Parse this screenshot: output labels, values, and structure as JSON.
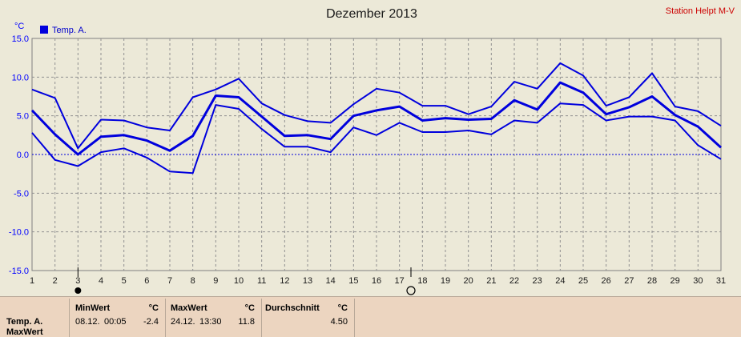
{
  "station": "Station Helpt M-V",
  "chart_data": {
    "type": "line",
    "title": "Dezember 2013",
    "ylabel": "°C",
    "ylim": [
      -15,
      15
    ],
    "yticks": [
      "15.0",
      "10.0",
      "5.0",
      "0.0",
      "-5.0",
      "-10.0",
      "-15.0"
    ],
    "x": [
      "1",
      "2",
      "3",
      "4",
      "5",
      "6",
      "7",
      "8",
      "9",
      "10",
      "11",
      "12",
      "13",
      "14",
      "15",
      "16",
      "17",
      "18",
      "19",
      "20",
      "21",
      "22",
      "23",
      "24",
      "25",
      "26",
      "27",
      "28",
      "29",
      "30",
      "31"
    ],
    "grid": true,
    "legend": "top-left",
    "legend_label": "Temp. A.",
    "color": "#0000dd",
    "series": [
      {
        "values": [
          8.4,
          7.3,
          0.8,
          4.5,
          4.4,
          3.5,
          3.1,
          7.4,
          8.4,
          9.8,
          6.6,
          5.1,
          4.3,
          4.1,
          6.5,
          8.5,
          8.0,
          6.3,
          6.3,
          5.2,
          6.2,
          9.4,
          8.5,
          11.8,
          10.2,
          6.3,
          7.4,
          10.5,
          6.2,
          5.6,
          3.7
        ]
      },
      {
        "values": [
          5.7,
          2.6,
          0.0,
          2.3,
          2.5,
          1.8,
          0.5,
          2.4,
          7.6,
          7.4,
          4.9,
          2.4,
          2.5,
          2.0,
          5.0,
          5.7,
          6.2,
          4.4,
          4.7,
          4.5,
          4.6,
          7.0,
          5.8,
          9.3,
          8.0,
          5.2,
          6.1,
          7.5,
          5.1,
          3.6,
          0.9
        ]
      },
      {
        "values": [
          2.8,
          -0.7,
          -1.5,
          0.3,
          0.8,
          -0.4,
          -2.2,
          -2.4,
          6.4,
          5.9,
          3.3,
          1.0,
          1.0,
          0.3,
          3.5,
          2.5,
          4.1,
          2.9,
          2.9,
          3.1,
          2.6,
          4.4,
          4.1,
          6.6,
          6.4,
          4.4,
          4.9,
          4.9,
          4.4,
          1.2,
          -0.6
        ]
      }
    ],
    "markers": [
      {
        "day": 3,
        "shape": "filled-circle"
      },
      {
        "day": 17.5,
        "shape": "open-circle"
      }
    ]
  },
  "stats": {
    "series_name": "Temp. A.",
    "series_sub": "MaxWert",
    "min": {
      "header": "MinWert",
      "unit": "°C",
      "date": "08.12.",
      "time": "00:05",
      "value": "-2.4"
    },
    "max": {
      "header": "MaxWert",
      "unit": "°C",
      "date": "24.12.",
      "time": "13:30",
      "value": "11.8"
    },
    "avg": {
      "header": "Durchschnitt",
      "unit": "°C",
      "value": "4.50"
    }
  }
}
